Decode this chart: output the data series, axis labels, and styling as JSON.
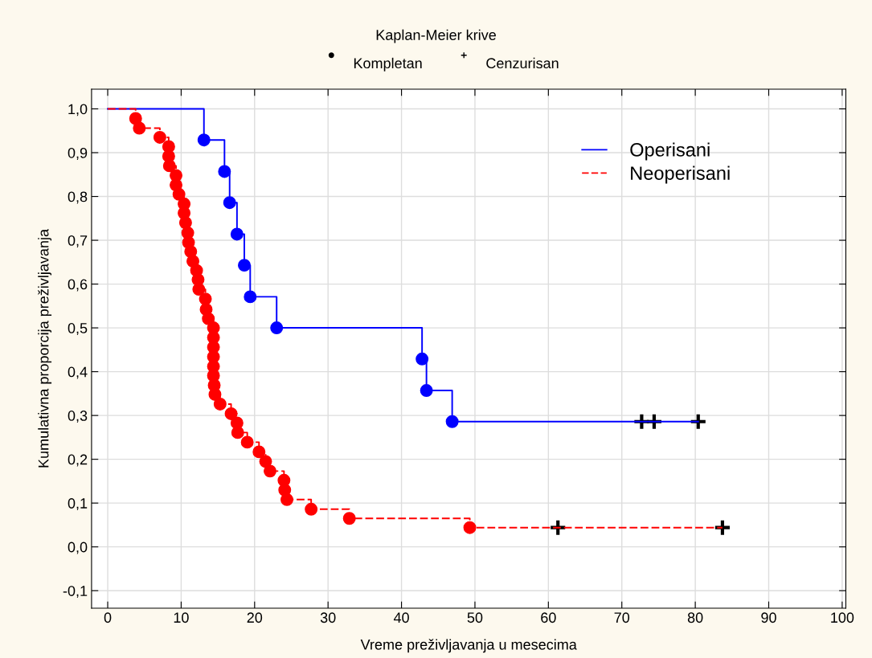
{
  "chart_data": {
    "type": "step",
    "title": "Kaplan-Meier krive",
    "xlabel": "Vreme preživljavanja u mesecima",
    "ylabel": "Kumulativna proporcija preživljavanja",
    "annotations": [
      "Kompletan",
      "Cenzurisan"
    ],
    "xlim": [
      -2.2,
      100.5
    ],
    "xticks": [
      0,
      10,
      20,
      30,
      40,
      50,
      60,
      70,
      80,
      90,
      100
    ],
    "ylim": [
      -0.14,
      1.045
    ],
    "yticks": [
      {
        "value": -0.1,
        "label": "-0,1"
      },
      {
        "value": 0.0,
        "label": "0,0"
      },
      {
        "value": 0.1,
        "label": "0,1"
      },
      {
        "value": 0.2,
        "label": "0,2"
      },
      {
        "value": 0.3,
        "label": "0,3"
      },
      {
        "value": 0.4,
        "label": "0,4"
      },
      {
        "value": 0.5,
        "label": "0,5"
      },
      {
        "value": 0.6,
        "label": "0,6"
      },
      {
        "value": 0.7,
        "label": "0,7"
      },
      {
        "value": 0.8,
        "label": "0,8"
      },
      {
        "value": 0.9,
        "label": "0,9"
      },
      {
        "value": 1.0,
        "label": "1,0"
      }
    ],
    "grid": true,
    "legend": "top right",
    "series": [
      {
        "name": "Operisani",
        "color": "#0000ff",
        "line_style": "solid",
        "marker": "none",
        "x": [
          0,
          13.1,
          15.9,
          16.6,
          17.6,
          18.6,
          19.4,
          23.0,
          42.8,
          43.4,
          46.9,
          80.4
        ],
        "values": [
          1.0,
          0.929,
          0.857,
          0.786,
          0.714,
          0.643,
          0.571,
          0.5,
          0.429,
          0.357,
          0.286,
          0.286
        ]
      },
      {
        "name": "Neoperisani",
        "color": "#ff0000",
        "line_style": "dashed",
        "marker": "none",
        "x": [
          0,
          3.8,
          4.3,
          7.1,
          8.3,
          8.3,
          8.4,
          9.3,
          9.3,
          9.7,
          10.4,
          10.4,
          10.6,
          10.9,
          11.0,
          11.3,
          11.6,
          12.1,
          12.3,
          12.4,
          13.3,
          13.4,
          13.7,
          14.4,
          14.4,
          14.4,
          14.4,
          14.4,
          14.4,
          14.5,
          14.6,
          15.3,
          16.8,
          17.6,
          17.7,
          19.0,
          20.6,
          21.5,
          22.1,
          24.0,
          24.1,
          24.4,
          27.7,
          32.9,
          49.3,
          83.7
        ],
        "values": [
          1.0,
          0.978,
          0.956,
          0.935,
          0.914,
          0.892,
          0.87,
          0.848,
          0.826,
          0.805,
          0.783,
          0.762,
          0.74,
          0.717,
          0.695,
          0.674,
          0.652,
          0.631,
          0.61,
          0.588,
          0.566,
          0.542,
          0.521,
          0.5,
          0.478,
          0.456,
          0.434,
          0.412,
          0.391,
          0.369,
          0.348,
          0.326,
          0.304,
          0.283,
          0.261,
          0.239,
          0.217,
          0.195,
          0.173,
          0.152,
          0.13,
          0.108,
          0.086,
          0.065,
          0.044,
          0.044
        ]
      },
      {
        "type": "scatter",
        "color": "#0000ff",
        "marker": "circle",
        "x": [
          13.1,
          15.9,
          16.6,
          17.6,
          18.6,
          19.4,
          23.0,
          42.8,
          43.4,
          46.9
        ],
        "values": [
          0.929,
          0.857,
          0.786,
          0.714,
          0.643,
          0.571,
          0.5,
          0.429,
          0.357,
          0.286
        ]
      },
      {
        "type": "scatter",
        "color": "#ff0000",
        "marker": "circle",
        "x": [
          3.8,
          4.3,
          7.1,
          8.3,
          8.3,
          8.4,
          9.3,
          9.3,
          9.7,
          10.4,
          10.4,
          10.6,
          10.9,
          11.0,
          11.3,
          11.6,
          12.1,
          12.3,
          12.4,
          13.3,
          13.4,
          13.7,
          14.4,
          14.4,
          14.4,
          14.4,
          14.4,
          14.4,
          14.5,
          14.6,
          15.3,
          16.8,
          17.6,
          17.7,
          19.0,
          20.6,
          21.5,
          22.1,
          24.0,
          24.1,
          24.4,
          27.7,
          32.9,
          49.3
        ],
        "values": [
          0.978,
          0.956,
          0.935,
          0.914,
          0.892,
          0.87,
          0.848,
          0.826,
          0.805,
          0.783,
          0.762,
          0.74,
          0.717,
          0.695,
          0.674,
          0.652,
          0.631,
          0.61,
          0.588,
          0.566,
          0.542,
          0.521,
          0.5,
          0.478,
          0.456,
          0.434,
          0.412,
          0.391,
          0.369,
          0.348,
          0.326,
          0.304,
          0.283,
          0.261,
          0.239,
          0.217,
          0.195,
          0.173,
          0.152,
          0.13,
          0.108,
          0.086,
          0.065,
          0.044
        ]
      },
      {
        "type": "scatter",
        "color": "#000000",
        "marker": "cross",
        "x": [
          72.7,
          74.4,
          80.4
        ],
        "values": [
          0.286,
          0.286,
          0.286
        ]
      },
      {
        "type": "scatter",
        "color": "#000000",
        "marker": "cross",
        "x": [
          61.3,
          83.7
        ],
        "values": [
          0.044,
          0.044
        ]
      }
    ]
  }
}
